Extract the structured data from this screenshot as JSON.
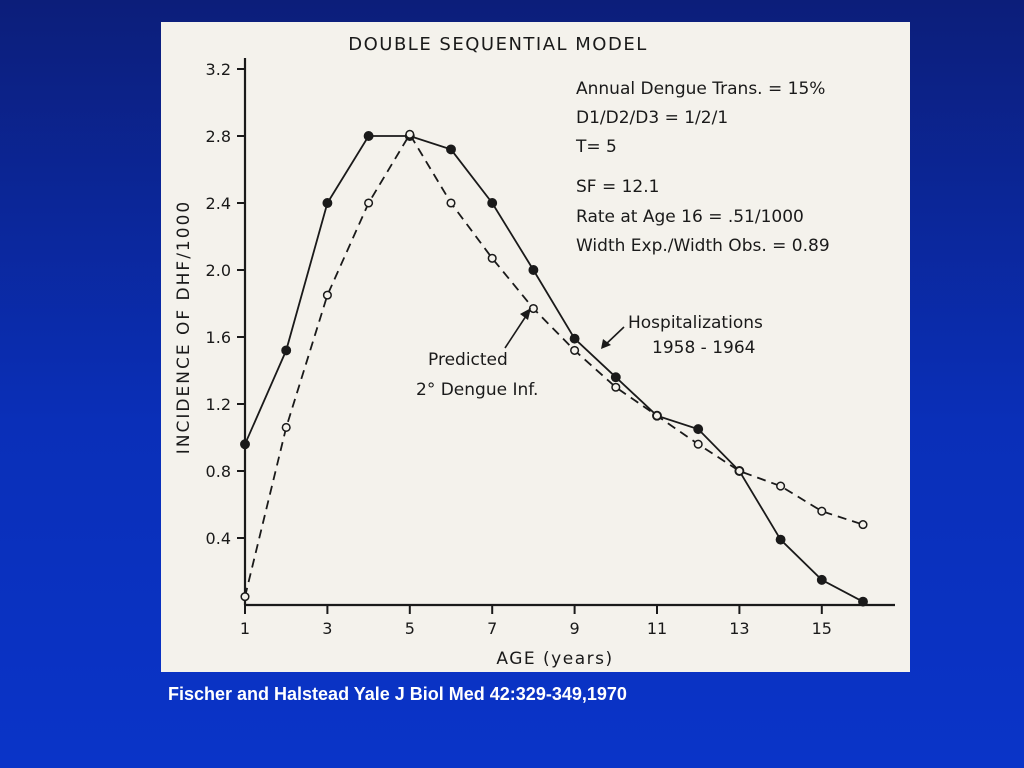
{
  "citation": "Fischer and Halstead Yale J Biol Med 42:329-349,1970",
  "chart_data": {
    "type": "line",
    "title": "DOUBLE SEQUENTIAL MODEL",
    "xlabel": "AGE (years)",
    "ylabel": "INCIDENCE OF DHF/1000",
    "xlim": [
      1,
      16
    ],
    "ylim": [
      0,
      3.2
    ],
    "x_ticks": [
      1,
      3,
      5,
      7,
      9,
      11,
      13,
      15
    ],
    "y_ticks": [
      0.4,
      0.8,
      1.2,
      1.6,
      2.0,
      2.4,
      2.8,
      3.2
    ],
    "y_tick_labels": [
      "0.4",
      "0.8",
      "1.2",
      "1.6",
      "2.0",
      "2.4",
      "2.8",
      "3.2"
    ],
    "grid": false,
    "info_lines": [
      "Annual Dengue Trans. = 15%",
      "D1/D2/D3 = 1/2/1",
      "T= 5",
      "SF = 12.1",
      "Rate at Age 16 = .51/1000",
      "Width Exp./Width Obs. = 0.89"
    ],
    "series": [
      {
        "name": "Hospitalizations 1958 - 1964",
        "label_lines": [
          "Hospitalizations",
          "1958 - 1964"
        ],
        "style": "solid",
        "marker": "filled-circle",
        "x": [
          1,
          2,
          3,
          4,
          5,
          6,
          7,
          8,
          9,
          10,
          11,
          12,
          13,
          14,
          15,
          16
        ],
        "y": [
          0.96,
          1.52,
          2.4,
          2.8,
          2.8,
          2.72,
          2.4,
          2.0,
          1.59,
          1.36,
          1.13,
          1.05,
          0.8,
          0.39,
          0.15,
          0.02
        ]
      },
      {
        "name": "Predicted 2° Dengue Inf.",
        "label_lines": [
          "Predicted",
          "2° Dengue Inf."
        ],
        "style": "dashed",
        "marker": "open-circle",
        "x": [
          1,
          2,
          3,
          4,
          5,
          6,
          7,
          8,
          9,
          10,
          11,
          12,
          13,
          14,
          15,
          16
        ],
        "y": [
          0.05,
          1.06,
          1.85,
          2.4,
          2.81,
          2.4,
          2.07,
          1.77,
          1.52,
          1.3,
          1.13,
          0.96,
          0.8,
          0.71,
          0.56,
          0.48
        ]
      }
    ]
  }
}
